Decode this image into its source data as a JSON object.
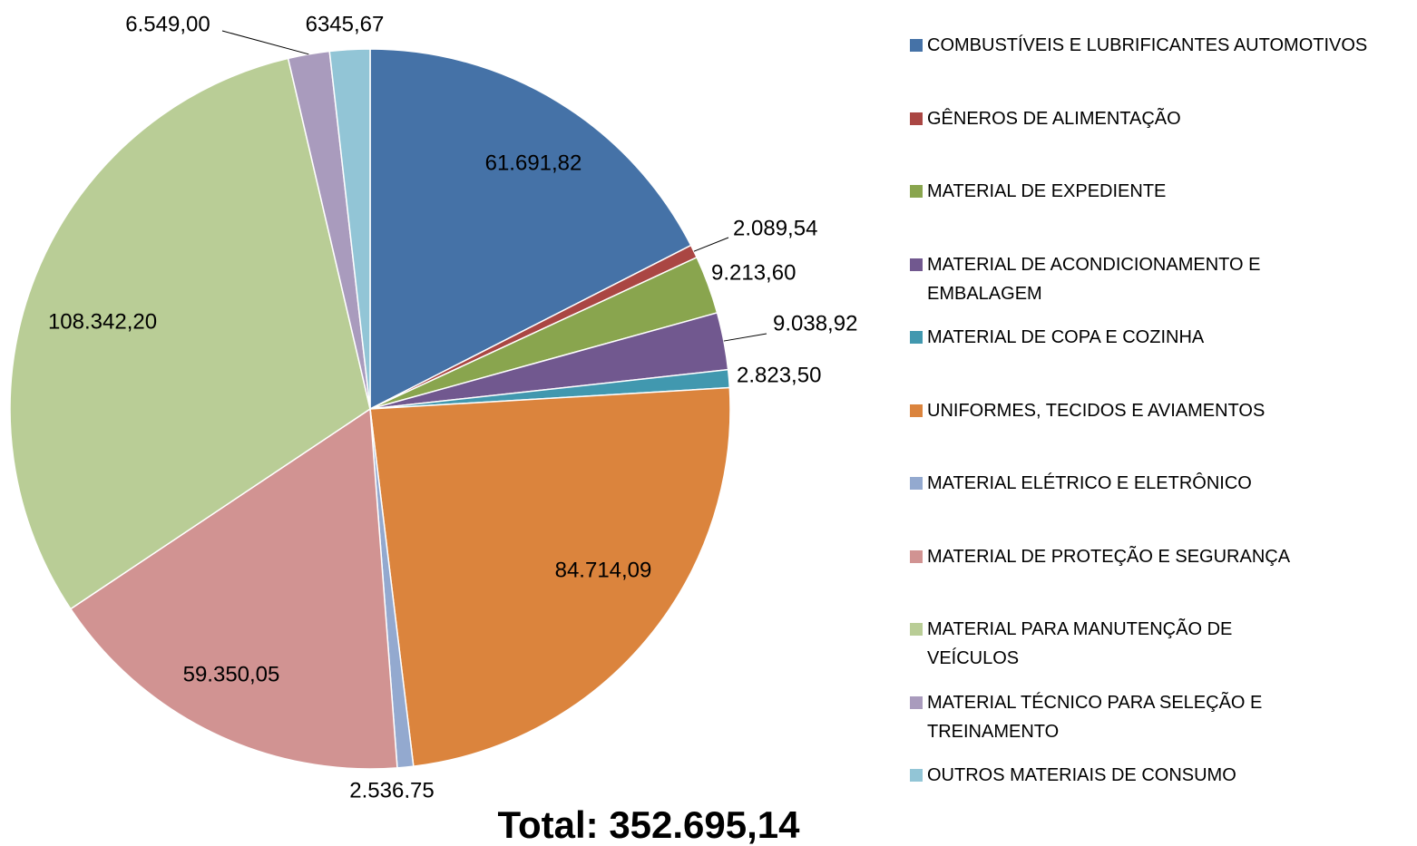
{
  "chart_data": {
    "type": "pie",
    "categories": [
      "COMBUSTÍVEIS E LUBRIFICANTES AUTOMOTIVOS",
      "GÊNEROS DE ALIMENTAÇÃO",
      "MATERIAL DE EXPEDIENTE",
      "MATERIAL DE ACONDICIONAMENTO E EMBALAGEM",
      "MATERIAL DE COPA E COZINHA",
      "UNIFORMES, TECIDOS E AVIAMENTOS",
      "MATERIAL ELÉTRICO E ELETRÔNICO",
      "MATERIAL DE PROTEÇÃO E SEGURANÇA",
      "MATERIAL PARA MANUTENÇÃO DE VEÍCULOS",
      "MATERIAL TÉCNICO PARA SELEÇÃO E TREINAMENTO",
      "OUTROS MATERIAIS DE CONSUMO"
    ],
    "values": [
      61691.82,
      2089.54,
      9213.6,
      9038.92,
      2823.5,
      84714.09,
      2536.75,
      59350.05,
      108342.2,
      6549.0,
      6345.67
    ],
    "value_labels": [
      "61.691,82",
      "2.089,54",
      "9.213,60",
      "9.038,92",
      "2.823,50",
      "84.714,09",
      "2.536,75",
      "59.350,05",
      "108.342,20",
      "6.549,00",
      "6345,67"
    ],
    "colors": [
      "#4572a7",
      "#aa4643",
      "#89a54e",
      "#71588f",
      "#4198af",
      "#db843d",
      "#93a9cf",
      "#d19392",
      "#b9cd96",
      "#a99bbd",
      "#92c5d6"
    ],
    "annotation": "Total: 352.695,14",
    "legend": "right"
  }
}
